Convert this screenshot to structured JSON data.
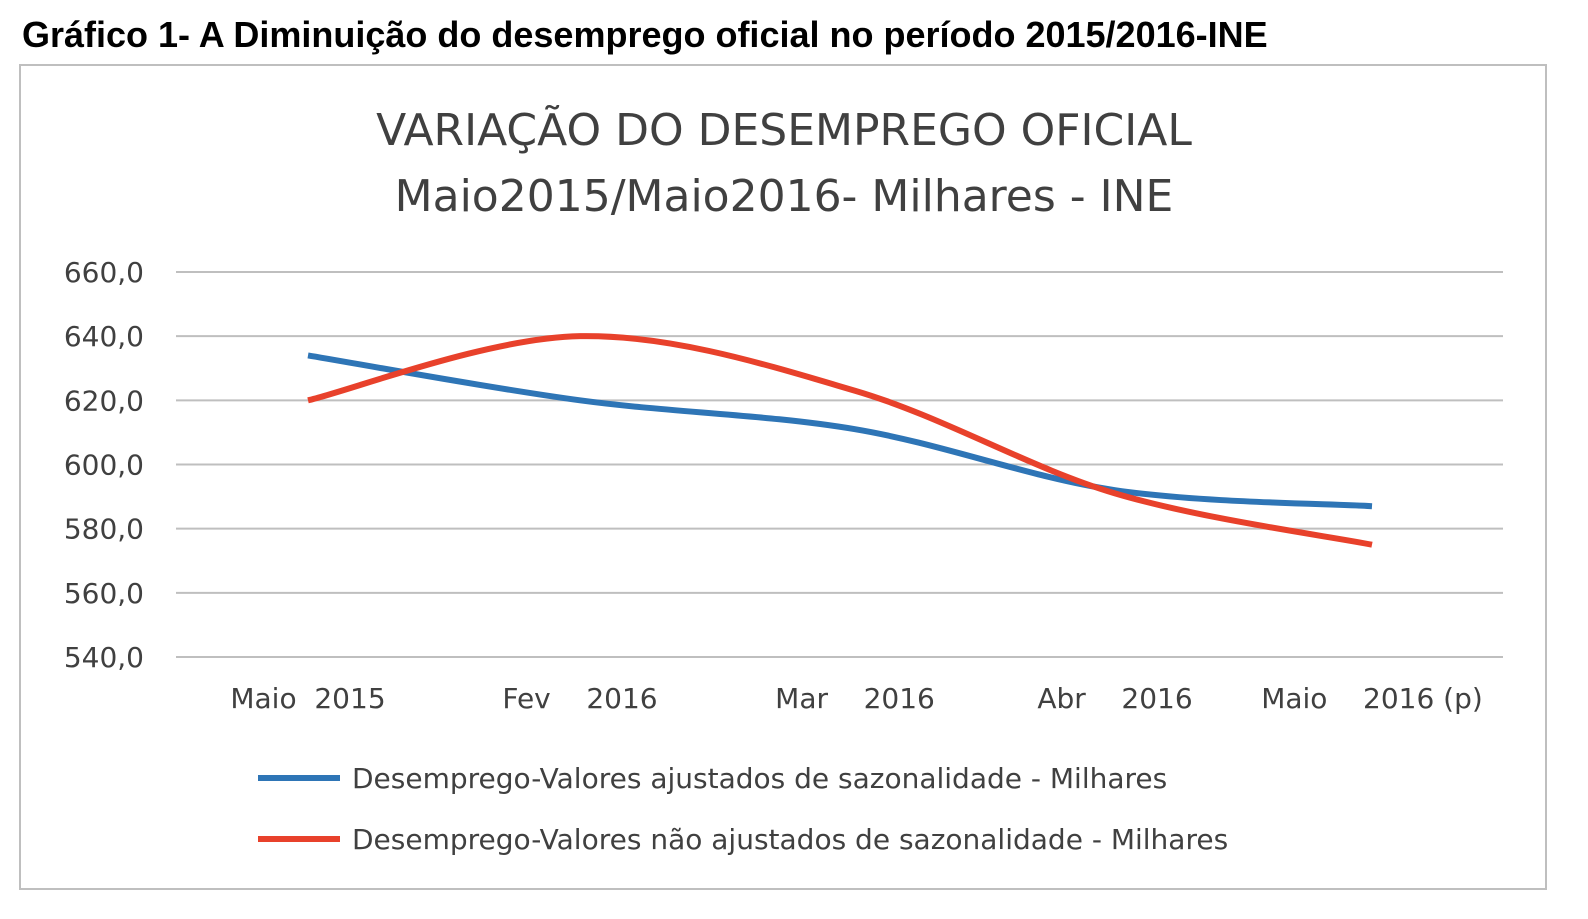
{
  "figure": {
    "caption": "Gráfico 1- A Diminuição do desemprego oficial no período 2015/2016-INE"
  },
  "chart_data": {
    "type": "line",
    "title": [
      "VARIAÇÃO DO DESEMPREGO OFICIAL",
      "Maio2015/Maio2016- Milhares - INE"
    ],
    "categories": [
      "Maio  2015",
      "Fev    2016",
      "Mar    2016",
      "Abr    2016",
      "Maio    2016 (p)"
    ],
    "ylim": [
      540,
      660
    ],
    "yticks": [
      "660,0",
      "640,0",
      "620,0",
      "600,0",
      "580,0",
      "560,0",
      "540,0"
    ],
    "grid": true,
    "legend_position": "bottom",
    "series": [
      {
        "name": "Desemprego-Valores ajustados de sazonalidade - Milhares",
        "color": "#2e75b6",
        "values": [
          634,
          620,
          611,
          592,
          587
        ]
      },
      {
        "name": "Desemprego-Valores não ajustados de sazonalidade - Milhares",
        "color": "#e8412b",
        "values": [
          620,
          640,
          623,
          591,
          575
        ]
      }
    ]
  }
}
